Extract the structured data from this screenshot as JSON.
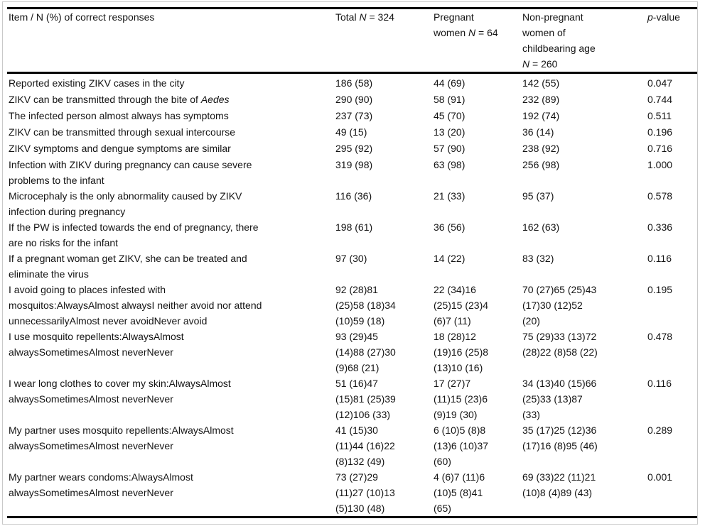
{
  "colors": {
    "text": "#141414",
    "rule": "#000000",
    "frame_border": "#c9c9c9",
    "background": "#ffffff"
  },
  "table": {
    "header": {
      "item": "Item / N (%) of correct responses",
      "total": {
        "pre": "Total ",
        "it": "N",
        "post": " = 324"
      },
      "pregnant": {
        "pre": "Pregnant women ",
        "it": "N",
        "post": " = 64"
      },
      "non_pregnant": {
        "pre": "Non-pregnant women of childbearing age ",
        "it": "N",
        "post": " = 260"
      },
      "p": {
        "it": "p",
        "post": "-value"
      }
    },
    "rows": [
      {
        "item": "Reported existing ZIKV cases in the city",
        "item_italic": "",
        "total": "186 (58)",
        "pregnant": "44 (69)",
        "non_pregnant": "142 (55)",
        "p": "0.047"
      },
      {
        "item": "ZIKV can be transmitted through the bite of ",
        "item_italic": "Aedes",
        "total": "290 (90)",
        "pregnant": "58 (91)",
        "non_pregnant": "232 (89)",
        "p": "0.744"
      },
      {
        "item": "The infected person almost always has symptoms",
        "item_italic": "",
        "total": "237 (73)",
        "pregnant": "45 (70)",
        "non_pregnant": "192 (74)",
        "p": "0.511"
      },
      {
        "item": "ZIKV can be transmitted through sexual intercourse",
        "item_italic": "",
        "total": "49 (15)",
        "pregnant": "13 (20)",
        "non_pregnant": "36 (14)",
        "p": "0.196"
      },
      {
        "item": "ZIKV symptoms and dengue symptoms are similar",
        "item_italic": "",
        "total": "295 (92)",
        "pregnant": "57 (90)",
        "non_pregnant": "238 (92)",
        "p": "0.716"
      },
      {
        "item": "Infection with ZIKV during pregnancy can cause severe problems to the infant",
        "item_italic": "",
        "total": "319 (98)",
        "pregnant": "63 (98)",
        "non_pregnant": "256 (98)",
        "p": "1.000"
      },
      {
        "item": "Microcephaly is the only abnormality caused by ZIKV infection during pregnancy",
        "item_italic": "",
        "total": "116 (36)",
        "pregnant": "21 (33)",
        "non_pregnant": "95 (37)",
        "p": "0.578"
      },
      {
        "item": "If the PW is infected towards the end of pregnancy, there are no risks for the infant",
        "item_italic": "",
        "total": "198 (61)",
        "pregnant": "36 (56)",
        "non_pregnant": "162 (63)",
        "p": "0.336"
      },
      {
        "item": "If a pregnant woman get ZIKV, she can be treated and eliminate the virus",
        "item_italic": "",
        "total": "97 (30)",
        "pregnant": "14 (22)",
        "non_pregnant": "83 (32)",
        "p": "0.116"
      },
      {
        "item": "I avoid going to places infested with mosquitos:AlwaysAlmost alwaysI neither avoid nor attend unnecessarilyAlmost never avoidNever avoid",
        "item_italic": "",
        "total": "92 (28)81 (25)58 (18)34 (10)59 (18)",
        "pregnant": "22 (34)16 (25)15 (23)4 (6)7 (11)",
        "non_pregnant": "70 (27)65 (25)43 (17)30 (12)52 (20)",
        "p": "0.195"
      },
      {
        "item": "I use mosquito repellents:AlwaysAlmost alwaysSometimesAlmost neverNever",
        "item_italic": "",
        "total": "93 (29)45 (14)88 (27)30 (9)68 (21)",
        "pregnant": "18 (28)12 (19)16 (25)8 (13)10 (16)",
        "non_pregnant": "75 (29)33 (13)72 (28)22 (8)58 (22)",
        "p": "0.478"
      },
      {
        "item": "I wear long clothes to cover my skin:AlwaysAlmost alwaysSometimesAlmost neverNever",
        "item_italic": "",
        "total": "51 (16)47 (15)81 (25)39 (12)106 (33)",
        "pregnant": "17 (27)7 (11)15 (23)6 (9)19 (30)",
        "non_pregnant": "34 (13)40 (15)66 (25)33 (13)87 (33)",
        "p": "0.116"
      },
      {
        "item": "My partner uses mosquito repellents:AlwaysAlmost alwaysSometimesAlmost neverNever",
        "item_italic": "",
        "total": "41 (15)30 (11)44 (16)22 (8)132 (49)",
        "pregnant": "6 (10)5 (8)8 (13)6 (10)37 (60)",
        "non_pregnant": "35 (17)25 (12)36 (17)16 (8)95 (46)",
        "p": "0.289"
      },
      {
        "item": "My partner wears condoms:AlwaysAlmost alwaysSometimesAlmost neverNever",
        "item_italic": "",
        "total": "73 (27)29 (11)27 (10)13 (5)130 (48)",
        "pregnant": "4 (6)7 (11)6 (10)5 (8)41 (65)",
        "non_pregnant": "69 (33)22 (11)21 (10)8 (4)89 (43)",
        "p": "0.001"
      }
    ]
  }
}
